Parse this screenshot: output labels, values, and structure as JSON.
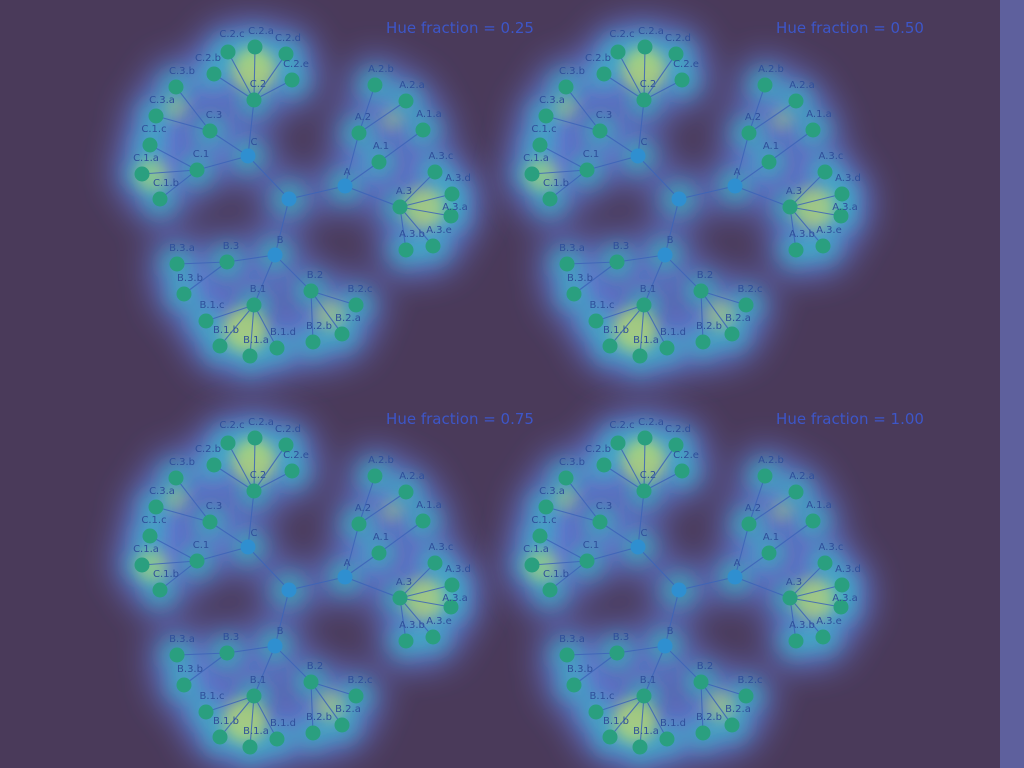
{
  "figure": {
    "panels": [
      {
        "title": "Hue fraction = 0.25",
        "hue_fraction": 0.25
      },
      {
        "title": "Hue fraction = 0.50",
        "hue_fraction": 0.5
      },
      {
        "title": "Hue fraction = 0.75",
        "hue_fraction": 0.75
      },
      {
        "title": "Hue fraction = 1.00",
        "hue_fraction": 1.0
      }
    ],
    "colors": {
      "background": "#4a3a5a",
      "halo": "#6a8cff",
      "field_mid": "#2ec9b8",
      "field_hot": "#c8f05a",
      "node_fill": "#2a9f7f",
      "hub_fill": "#2f8fd0",
      "edge": "#3d64b8",
      "text": "#3d56c8"
    },
    "tree": {
      "root": {
        "label": ""
      },
      "groups": [
        {
          "label": "C",
          "children": [
            {
              "label": "C.1",
              "children": [
                "C.1.a",
                "C.1.b",
                "C.1.c"
              ]
            },
            {
              "label": "C.2",
              "children": [
                "C.2.a",
                "C.2.b",
                "C.2.c",
                "C.2.d",
                "C.2.e"
              ]
            },
            {
              "label": "C.3",
              "children": [
                "C.3.a",
                "C.3.b"
              ]
            }
          ]
        },
        {
          "label": "A",
          "children": [
            {
              "label": "A.1",
              "children": [
                "A.1.a"
              ]
            },
            {
              "label": "A.2",
              "children": [
                "A.2.a",
                "A.2.b"
              ]
            },
            {
              "label": "A.3",
              "children": [
                "A.3.a",
                "A.3.b",
                "A.3.c",
                "A.3.d",
                "A.3.e"
              ]
            }
          ]
        },
        {
          "label": "B",
          "children": [
            {
              "label": "B.1",
              "children": [
                "B.1.a",
                "B.1.b",
                "B.1.c",
                "B.1.d"
              ]
            },
            {
              "label": "B.2",
              "children": [
                "B.2.a",
                "B.2.b",
                "B.2.c"
              ]
            },
            {
              "label": "B.3",
              "children": [
                "B.3.a",
                "B.3.b"
              ]
            }
          ]
        }
      ]
    }
  }
}
